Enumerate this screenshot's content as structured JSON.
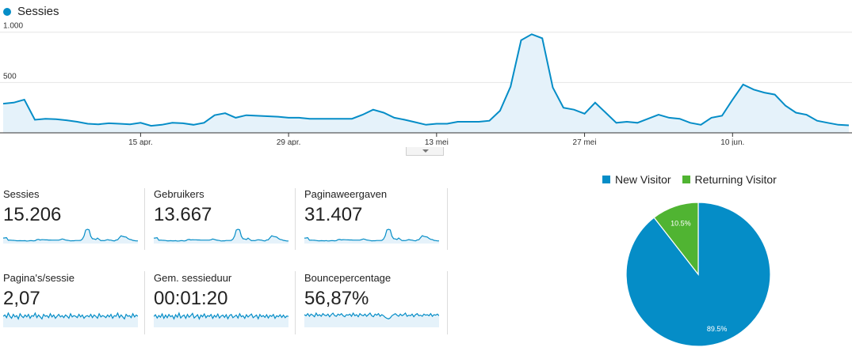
{
  "legend": {
    "series_label": "Sessies"
  },
  "colors": {
    "series": "#058dc7",
    "fill": "#e5f2fa",
    "new_visitor": "#058dc7",
    "returning_visitor": "#50b432"
  },
  "chart_data": [
    {
      "type": "area",
      "title": "",
      "series": [
        {
          "name": "Sessies",
          "values": [
            290,
            300,
            330,
            130,
            140,
            135,
            125,
            110,
            90,
            85,
            95,
            90,
            85,
            100,
            70,
            80,
            100,
            95,
            80,
            100,
            175,
            195,
            150,
            175,
            170,
            165,
            160,
            150,
            150,
            140,
            140,
            140,
            140,
            140,
            180,
            230,
            200,
            150,
            130,
            105,
            80,
            90,
            90,
            110,
            110,
            110,
            120,
            220,
            460,
            920,
            980,
            940,
            450,
            250,
            230,
            190,
            300,
            200,
            100,
            110,
            100,
            140,
            180,
            150,
            140,
            100,
            80,
            150,
            170,
            330,
            480,
            430,
            400,
            380,
            270,
            200,
            180,
            120,
            100,
            80,
            75
          ]
        }
      ],
      "yticks": [
        500,
        1000
      ],
      "ytick_labels": [
        "500",
        "1.000"
      ],
      "ylim": [
        0,
        1100
      ],
      "xtick_labels": [
        "15 apr.",
        "29 apr.",
        "13 mei",
        "27 mei",
        "10 jun."
      ],
      "xtick_index": [
        13,
        27,
        41,
        55,
        69
      ],
      "grid": true
    },
    {
      "type": "pie",
      "slices": [
        {
          "label": "New Visitor",
          "value": 89.5,
          "display": "89.5%"
        },
        {
          "label": "Returning Visitor",
          "value": 10.5,
          "display": "10.5%"
        }
      ],
      "legend_position": "top"
    }
  ],
  "metrics": [
    {
      "label": "Sessies",
      "value": "15.206",
      "trend": [
        30,
        31,
        33,
        13,
        14,
        13,
        12,
        11,
        9,
        9,
        10,
        9,
        9,
        10,
        7,
        8,
        10,
        10,
        8,
        10,
        18,
        20,
        15,
        18,
        17,
        16,
        16,
        15,
        15,
        14,
        14,
        14,
        14,
        14,
        18,
        23,
        20,
        15,
        13,
        11,
        8,
        9,
        9,
        11,
        11,
        11,
        12,
        22,
        46,
        92,
        98,
        94,
        45,
        25,
        23,
        19,
        30,
        20,
        10,
        11,
        10,
        14,
        18,
        15,
        14,
        10,
        8,
        15,
        17,
        33,
        48,
        43,
        40,
        38,
        27,
        20,
        18,
        12,
        10,
        8,
        8
      ]
    },
    {
      "label": "Gebruikers",
      "value": "13.667",
      "trend": [
        27,
        28,
        30,
        12,
        13,
        12,
        11,
        10,
        8,
        8,
        9,
        8,
        8,
        9,
        6,
        7,
        9,
        9,
        7,
        9,
        16,
        18,
        14,
        16,
        15,
        15,
        14,
        14,
        13,
        13,
        13,
        13,
        13,
        13,
        16,
        21,
        18,
        14,
        12,
        10,
        7,
        8,
        8,
        10,
        10,
        10,
        11,
        20,
        42,
        85,
        90,
        86,
        41,
        23,
        21,
        17,
        27,
        18,
        9,
        10,
        9,
        13,
        16,
        14,
        13,
        9,
        7,
        14,
        15,
        30,
        44,
        40,
        37,
        35,
        25,
        18,
        16,
        11,
        9,
        7,
        7
      ]
    },
    {
      "label": "Paginaweergaven",
      "value": "31.407",
      "trend": [
        60,
        62,
        68,
        27,
        29,
        28,
        26,
        23,
        19,
        18,
        20,
        19,
        18,
        21,
        15,
        17,
        21,
        20,
        17,
        21,
        36,
        40,
        31,
        36,
        35,
        34,
        33,
        31,
        31,
        29,
        29,
        29,
        29,
        29,
        37,
        48,
        41,
        31,
        27,
        22,
        17,
        19,
        19,
        23,
        23,
        23,
        25,
        45,
        95,
        190,
        200,
        190,
        93,
        52,
        48,
        39,
        62,
        41,
        21,
        23,
        21,
        29,
        37,
        31,
        29,
        21,
        17,
        31,
        35,
        68,
        99,
        89,
        82,
        78,
        56,
        41,
        37,
        25,
        21,
        17,
        16
      ]
    },
    {
      "label": "Pagina's/sessie",
      "value": "2,07",
      "trend": [
        50,
        52,
        48,
        55,
        50,
        47,
        53,
        49,
        51,
        46,
        54,
        50,
        48,
        52,
        49,
        53,
        47,
        51,
        50,
        55,
        48,
        52,
        49,
        46,
        53,
        50,
        51,
        48,
        54,
        49,
        52,
        47,
        50,
        53,
        49,
        51,
        48,
        52,
        50,
        47,
        54,
        49,
        51,
        50,
        48,
        53,
        49,
        52,
        47,
        50,
        51,
        49,
        53,
        48,
        52,
        50,
        47,
        54,
        49,
        51,
        50,
        48,
        52,
        49,
        53,
        47,
        51,
        50,
        55,
        48,
        52,
        49,
        46,
        53,
        50,
        51,
        48,
        54,
        49,
        52,
        50
      ]
    },
    {
      "label": "Gem. sessieduur",
      "value": "00:01:20",
      "trend": [
        50,
        60,
        40,
        55,
        45,
        65,
        38,
        58,
        42,
        62,
        48,
        55,
        35,
        60,
        45,
        70,
        40,
        52,
        58,
        38,
        62,
        45,
        55,
        68,
        40,
        50,
        60,
        35,
        58,
        48,
        65,
        42,
        55,
        50,
        62,
        38,
        56,
        46,
        64,
        40,
        52,
        58,
        44,
        60,
        36,
        55,
        62,
        42,
        50,
        58,
        40,
        66,
        48,
        54,
        38,
        60,
        46,
        56,
        64,
        42,
        50,
        58,
        36,
        62,
        48,
        55,
        44,
        60,
        40,
        56,
        50,
        62,
        38,
        54,
        48,
        60,
        44,
        58,
        42,
        52,
        50
      ]
    },
    {
      "label": "Bouncepercentage",
      "value": "56,87%",
      "trend": [
        52,
        50,
        54,
        49,
        53,
        51,
        48,
        55,
        50,
        52,
        49,
        54,
        51,
        50,
        53,
        48,
        52,
        55,
        50,
        49,
        53,
        51,
        54,
        50,
        48,
        52,
        51,
        53,
        49,
        55,
        50,
        52,
        48,
        54,
        51,
        50,
        53,
        49,
        52,
        55,
        50,
        48,
        53,
        51,
        54,
        49,
        52,
        50,
        47,
        45,
        44,
        46,
        50,
        52,
        54,
        51,
        49,
        53,
        50,
        52,
        55,
        49,
        51,
        50,
        53,
        48,
        52,
        54,
        50,
        51,
        49,
        53,
        51,
        52,
        50,
        54,
        49,
        52,
        51,
        53,
        50
      ]
    }
  ]
}
